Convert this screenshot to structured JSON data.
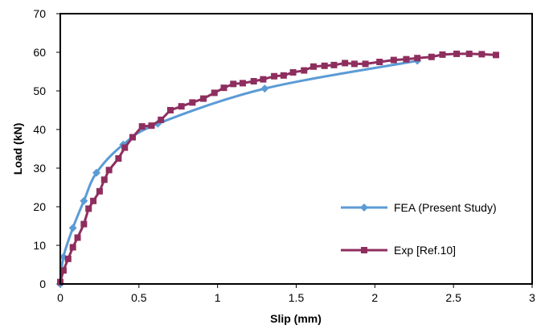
{
  "chart_data": {
    "type": "line",
    "title": "",
    "xlabel": "Slip (mm)",
    "ylabel": "Load (kN)",
    "xlim": [
      0,
      3
    ],
    "ylim": [
      0,
      70
    ],
    "xticks": [
      0,
      0.5,
      1,
      1.5,
      2,
      2.5,
      3
    ],
    "xtick_labels": [
      "0",
      "0.5",
      "1",
      "1.5",
      "2",
      "2.5",
      "3"
    ],
    "yticks": [
      0,
      10,
      20,
      30,
      40,
      50,
      60,
      70
    ],
    "ytick_labels": [
      "0",
      "10",
      "20",
      "30",
      "40",
      "50",
      "60",
      "70"
    ],
    "grid": false,
    "legend_position": "bottom-right",
    "series": [
      {
        "name": "FEA (Present Study)",
        "color": "#5B9BD5",
        "marker": "diamond",
        "smooth": true,
        "x": [
          0,
          0.02,
          0.08,
          0.15,
          0.23,
          0.4,
          0.62,
          1.3,
          2.27
        ],
        "y": [
          0,
          7,
          14.5,
          21.5,
          28.8,
          36.1,
          41.5,
          50.6,
          57.8
        ]
      },
      {
        "name": "Exp [Ref.10]",
        "color": "#8E2E5E",
        "marker": "square",
        "smooth": false,
        "x": [
          0,
          0.02,
          0.05,
          0.08,
          0.11,
          0.15,
          0.18,
          0.21,
          0.25,
          0.28,
          0.31,
          0.37,
          0.41,
          0.46,
          0.52,
          0.58,
          0.64,
          0.7,
          0.77,
          0.84,
          0.91,
          0.98,
          1.04,
          1.1,
          1.16,
          1.23,
          1.29,
          1.36,
          1.42,
          1.48,
          1.55,
          1.61,
          1.68,
          1.74,
          1.81,
          1.87,
          1.94,
          2.03,
          2.12,
          2.2,
          2.27,
          2.36,
          2.43,
          2.52,
          2.6,
          2.68,
          2.77
        ],
        "y": [
          0.5,
          3.5,
          6.5,
          9.5,
          12,
          15.5,
          19.5,
          21.5,
          24,
          27,
          29.5,
          32.5,
          35.3,
          38,
          40.8,
          41,
          42.5,
          45,
          46,
          47,
          48,
          49.5,
          50.8,
          51.8,
          52,
          52.5,
          53,
          53.8,
          54,
          54.8,
          55.3,
          56.3,
          56.5,
          56.7,
          57.2,
          57,
          57,
          57.5,
          58,
          58.2,
          58.5,
          58.8,
          59.4,
          59.6,
          59.6,
          59.5,
          59.3
        ]
      }
    ]
  }
}
